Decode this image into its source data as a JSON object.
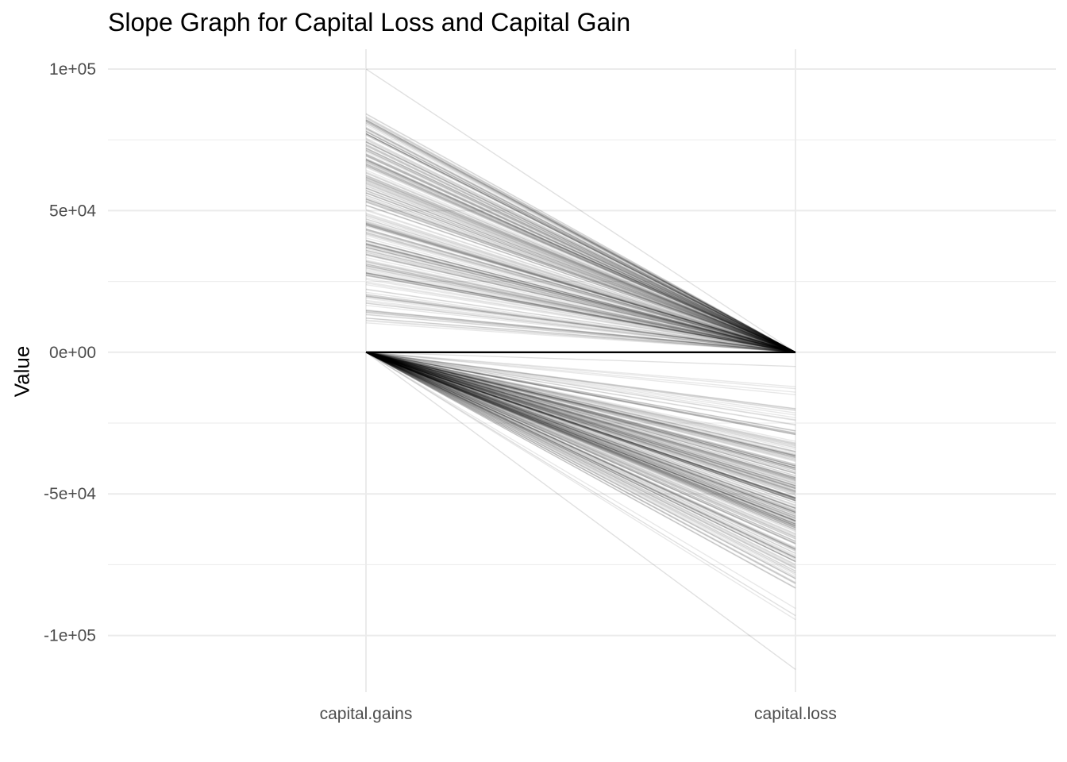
{
  "chart_data": {
    "type": "line",
    "title": "Slope Graph for Capital Loss and Capital Gain",
    "xlabel": "",
    "ylabel": "Value",
    "categories": [
      "capital.gains",
      "capital.loss"
    ],
    "ylim": [
      -120000,
      107000
    ],
    "y_ticks": [
      {
        "value": 100000,
        "label": "1e+05"
      },
      {
        "value": 50000,
        "label": "5e+04"
      },
      {
        "value": 0,
        "label": "0e+00"
      },
      {
        "value": -50000,
        "label": "-5e+04"
      },
      {
        "value": -100000,
        "label": "-1e+05"
      }
    ],
    "grid": true,
    "line_color": "#000000",
    "grid_color": "#ebebeb",
    "series_summary": {
      "gains_to_zero_loss": {
        "from_range": [
          8000,
          100000
        ],
        "to_value": 0,
        "count_approx": 260
      },
      "zero_gain_to_loss": {
        "from_value": 0,
        "to_range": [
          -112000,
          -5000
        ],
        "count_approx": 280
      },
      "zero_to_zero": {
        "from_value": 0,
        "to_value": 0
      }
    },
    "series": [
      {
        "values": [
          100000,
          0
        ]
      },
      {
        "values": [
          82000,
          0
        ]
      },
      {
        "values": [
          75000,
          0
        ]
      },
      {
        "values": [
          68000,
          0
        ]
      },
      {
        "values": [
          60000,
          0
        ]
      },
      {
        "values": [
          52000,
          0
        ]
      },
      {
        "values": [
          45000,
          0
        ]
      },
      {
        "values": [
          36000,
          0
        ]
      },
      {
        "values": [
          28000,
          0
        ]
      },
      {
        "values": [
          20000,
          0
        ]
      },
      {
        "values": [
          12000,
          0
        ]
      },
      {
        "values": [
          0,
          0
        ]
      },
      {
        "values": [
          0,
          -5000
        ]
      },
      {
        "values": [
          0,
          -20000
        ]
      },
      {
        "values": [
          0,
          -35000
        ]
      },
      {
        "values": [
          0,
          -48000
        ]
      },
      {
        "values": [
          0,
          -55000
        ]
      },
      {
        "values": [
          0,
          -62000
        ]
      },
      {
        "values": [
          0,
          -70000
        ]
      },
      {
        "values": [
          0,
          -80000
        ]
      },
      {
        "values": [
          0,
          -93000
        ]
      },
      {
        "values": [
          0,
          -112000
        ]
      }
    ]
  }
}
